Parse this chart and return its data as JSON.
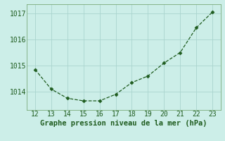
{
  "x": [
    12,
    13,
    14,
    15,
    16,
    17,
    18,
    19,
    20,
    21,
    22,
    23
  ],
  "y": [
    1014.85,
    1014.1,
    1013.75,
    1013.65,
    1013.65,
    1013.9,
    1014.35,
    1014.6,
    1015.1,
    1015.5,
    1016.45,
    1017.05
  ],
  "xlim": [
    11.5,
    23.5
  ],
  "ylim": [
    1013.3,
    1017.35
  ],
  "yticks": [
    1014,
    1015,
    1016,
    1017
  ],
  "xticks": [
    12,
    13,
    14,
    15,
    16,
    17,
    18,
    19,
    20,
    21,
    22,
    23
  ],
  "line_color": "#1f5c1f",
  "marker_color": "#1f5c1f",
  "bg_color": "#cceee8",
  "grid_color": "#aad4ce",
  "xlabel": "Graphe pression niveau de la mer (hPa)",
  "xlabel_color": "#1f5c1f",
  "tick_color": "#1f5c1f",
  "spine_color": "#7aaa7a",
  "tick_fontsize": 7,
  "xlabel_fontsize": 7.5
}
